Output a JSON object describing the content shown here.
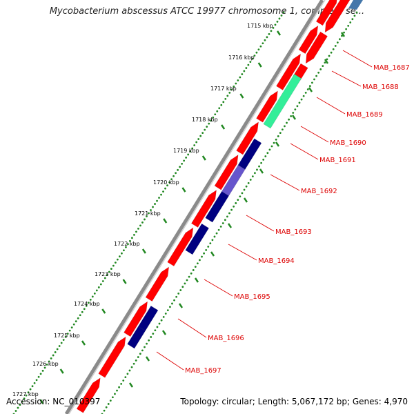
{
  "title": "Mycobacterium abscessus ATCC 19977 chromosome 1, complete se...",
  "footer": {
    "accession": "Accession: NC_010397",
    "summary": "Topology: circular; Length: 5,067,172 bp; Genes: 4,970"
  },
  "colors": {
    "backbone": "#888888",
    "gene_forward": "#ff0000",
    "gene_reverse": "#ff0000",
    "gene_highlight_green": "#33ee99",
    "gene_highlight_navy": "#000080",
    "gene_highlight_purple": "#6655cc",
    "label_color": "#dd0000",
    "tick_dots": "#228822"
  },
  "ticks": [
    {
      "label": "1715 kbp"
    },
    {
      "label": "1716 kbp"
    },
    {
      "label": "1717 kbp"
    },
    {
      "label": "1718 kbp"
    },
    {
      "label": "1719 kbp"
    },
    {
      "label": "1720 kbp"
    },
    {
      "label": "1721 kbp"
    },
    {
      "label": "1722 kbp"
    },
    {
      "label": "1723 kbp"
    },
    {
      "label": "1724 kbp"
    },
    {
      "label": "1725 kbp"
    },
    {
      "label": "1726 kbp"
    },
    {
      "label": "1727 kbp"
    }
  ],
  "genes": [
    {
      "label": "MAB_1687"
    },
    {
      "label": "MAB_1688"
    },
    {
      "label": "MAB_1689"
    },
    {
      "label": "MAB_1690"
    },
    {
      "label": "MAB_1691"
    },
    {
      "label": "MAB_1692"
    },
    {
      "label": "MAB_1693"
    },
    {
      "label": "MAB_1694"
    },
    {
      "label": "MAB_1695"
    },
    {
      "label": "MAB_1696"
    },
    {
      "label": "MAB_1697"
    }
  ]
}
